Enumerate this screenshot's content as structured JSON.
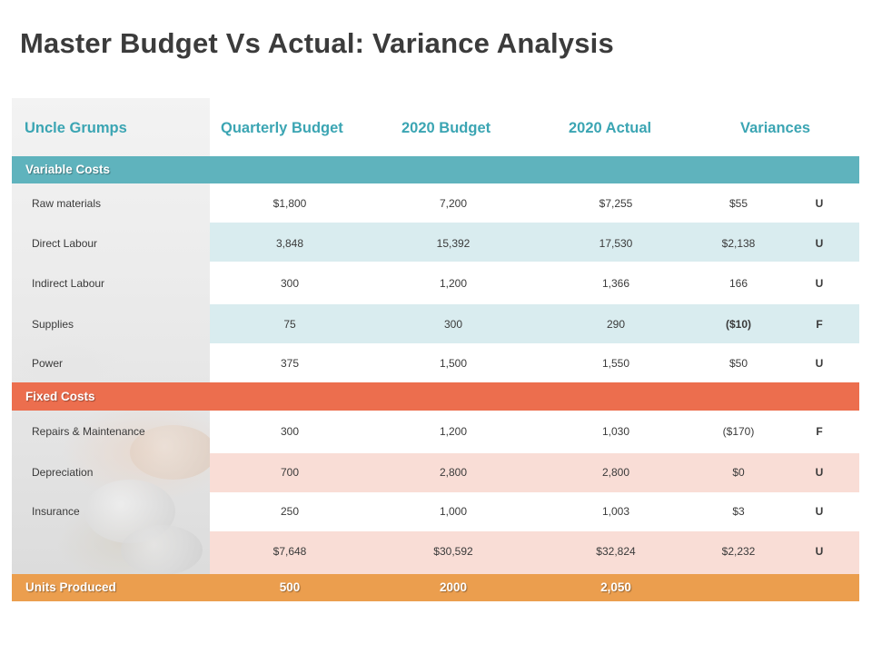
{
  "title": "Master Budget Vs Actual: Variance Analysis",
  "header": {
    "company": "Uncle Grumps",
    "quarterly_budget": "Quarterly Budget",
    "budget_2020": "2020 Budget",
    "actual_2020": "2020 Actual",
    "variances": "Variances"
  },
  "colors": {
    "header_text": "#3ba5b3",
    "variable_bar": "#5fb3bd",
    "variable_band": "#d9ecef",
    "fixed_bar": "#ec6e4e",
    "fixed_band": "#f9ddd6",
    "units_bar": "#eb9e4e"
  },
  "variable_costs": {
    "label": "Variable Costs",
    "rows": [
      {
        "label": "Raw materials",
        "quarterly": "$1,800",
        "budget": "7,200",
        "actual": "$7,255",
        "variance": "$55",
        "flag": "U"
      },
      {
        "label": "Direct Labour",
        "quarterly": "3,848",
        "budget": "15,392",
        "actual": "17,530",
        "variance": "$2,138",
        "flag": "U"
      },
      {
        "label": "Indirect Labour",
        "quarterly": "300",
        "budget": "1,200",
        "actual": "1,366",
        "variance": "166",
        "flag": "U"
      },
      {
        "label": "Supplies",
        "quarterly": "75",
        "budget": "300",
        "actual": "290",
        "variance": "($10)",
        "flag": "F"
      },
      {
        "label": "Power",
        "quarterly": "375",
        "budget": "1,500",
        "actual": "1,550",
        "variance": "$50",
        "flag": "U"
      }
    ]
  },
  "fixed_costs": {
    "label": "Fixed Costs",
    "rows": [
      {
        "label": "Repairs & Maintenance",
        "quarterly": "300",
        "budget": "1,200",
        "actual": "1,030",
        "variance": "($170)",
        "flag": "F"
      },
      {
        "label": "Depreciation",
        "quarterly": "700",
        "budget": "2,800",
        "actual": "2,800",
        "variance": "$0",
        "flag": "U"
      },
      {
        "label": "Insurance",
        "quarterly": "250",
        "budget": "1,000",
        "actual": "1,003",
        "variance": "$3",
        "flag": "U"
      }
    ]
  },
  "total": {
    "quarterly": "$7,648",
    "budget": "$30,592",
    "actual": "$32,824",
    "variance": "$2,232",
    "flag": "U"
  },
  "units_produced": {
    "label": "Units Produced",
    "quarterly": "500",
    "budget": "2000",
    "actual": "2,050"
  }
}
